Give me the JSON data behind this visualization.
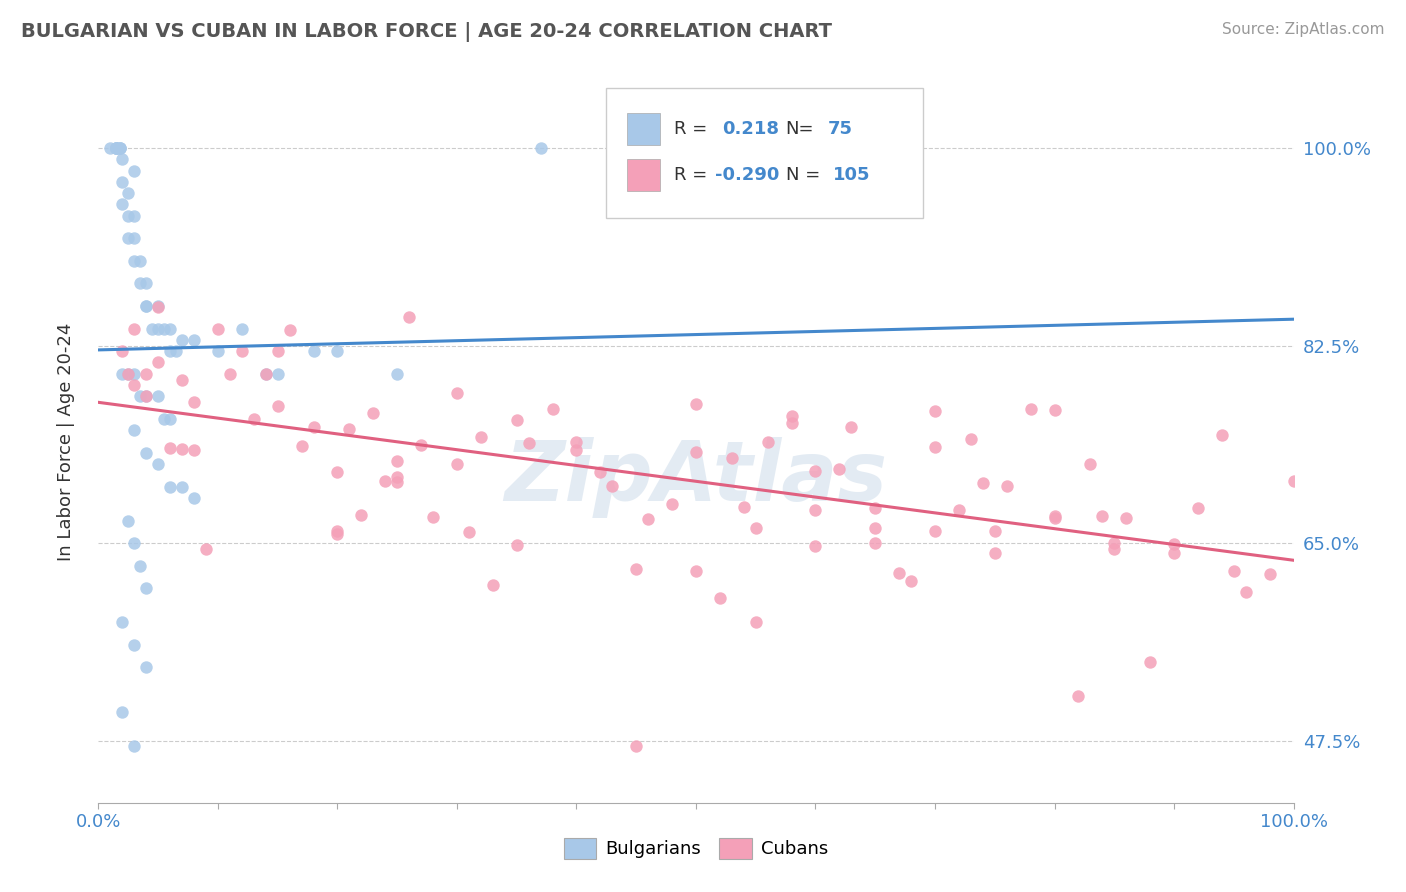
{
  "title": "BULGARIAN VS CUBAN IN LABOR FORCE | AGE 20-24 CORRELATION CHART",
  "source_text": "Source: ZipAtlas.com",
  "ylabel": "In Labor Force | Age 20-24",
  "xlim": [
    0.0,
    1.0
  ],
  "ylim": [
    0.42,
    1.06
  ],
  "ytick_vals": [
    0.475,
    0.65,
    0.825,
    1.0
  ],
  "ytick_labels": [
    "47.5%",
    "65.0%",
    "82.5%",
    "100.0%"
  ],
  "bulgarian_color": "#a8c8e8",
  "cuban_color": "#f4a0b8",
  "trend_bulgarian_color": "#4488cc",
  "trend_cuban_color": "#e06080",
  "R_bulgarian": 0.218,
  "N_bulgarian": 75,
  "R_cuban": -0.29,
  "N_cuban": 105,
  "background_color": "#ffffff",
  "grid_color": "#cccccc",
  "watermark": "ZipAtlas",
  "watermark_color": "#c8d8e8"
}
